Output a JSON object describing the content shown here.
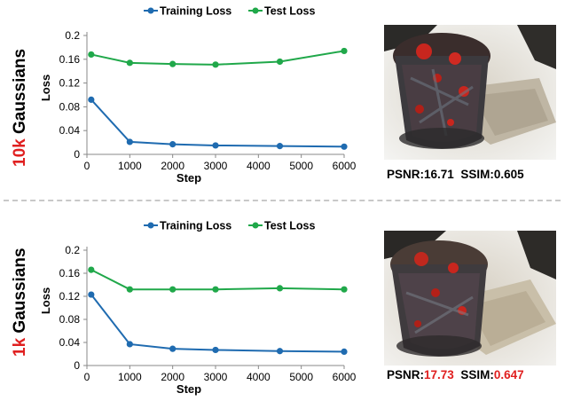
{
  "panels": [
    {
      "side_label_prefix": "10k",
      "side_label_suffix": " Gaussians",
      "psnr_label": "PSNR:",
      "psnr_value": "16.71",
      "ssim_label": "SSIM:",
      "ssim_value": "0.605",
      "values_highlighted": false,
      "image_name": "render-10k"
    },
    {
      "side_label_prefix": "1k",
      "side_label_suffix": " Gaussians",
      "psnr_label": "PSNR:",
      "psnr_value": "17.73",
      "ssim_label": "SSIM:",
      "ssim_value": "0.647",
      "values_highlighted": true,
      "image_name": "render-1k"
    }
  ],
  "colors": {
    "training": "#1f6bb0",
    "test": "#20a84a",
    "highlight": "#e02020"
  },
  "chart_data": [
    {
      "type": "line",
      "x": [
        100,
        1000,
        2000,
        3000,
        4500,
        6000
      ],
      "series": [
        {
          "name": "Training Loss",
          "values": [
            0.092,
            0.021,
            0.017,
            0.015,
            0.014,
            0.013
          ]
        },
        {
          "name": "Test Loss",
          "values": [
            0.168,
            0.154,
            0.152,
            0.151,
            0.156,
            0.174
          ]
        }
      ],
      "xlabel": "Step",
      "ylabel": "Loss",
      "xticks": [
        0,
        1000,
        2000,
        3000,
        4000,
        5000,
        6000
      ],
      "yticks": [
        0,
        0.04,
        0.08,
        0.12,
        0.16,
        0.2
      ],
      "ytick_labels": [
        "0",
        "0.04",
        "0.08",
        "0.12",
        "0.16",
        "0.2"
      ],
      "xlim": [
        0,
        6000
      ],
      "ylim": [
        0,
        0.2
      ],
      "grid": false,
      "legend": "top-center"
    },
    {
      "type": "line",
      "x": [
        100,
        1000,
        2000,
        3000,
        4500,
        6000
      ],
      "series": [
        {
          "name": "Training Loss",
          "values": [
            0.123,
            0.037,
            0.029,
            0.027,
            0.025,
            0.024
          ]
        },
        {
          "name": "Test Loss",
          "values": [
            0.166,
            0.132,
            0.132,
            0.132,
            0.134,
            0.132
          ]
        }
      ],
      "xlabel": "Step",
      "ylabel": "Loss",
      "xticks": [
        0,
        1000,
        2000,
        3000,
        4000,
        5000,
        6000
      ],
      "yticks": [
        0,
        0.04,
        0.08,
        0.12,
        0.16,
        0.2
      ],
      "ytick_labels": [
        "0",
        "0.04",
        "0.08",
        "0.12",
        "0.16",
        "0.2"
      ],
      "xlim": [
        0,
        6000
      ],
      "ylim": [
        0,
        0.2
      ],
      "grid": false,
      "legend": "top-center"
    }
  ]
}
